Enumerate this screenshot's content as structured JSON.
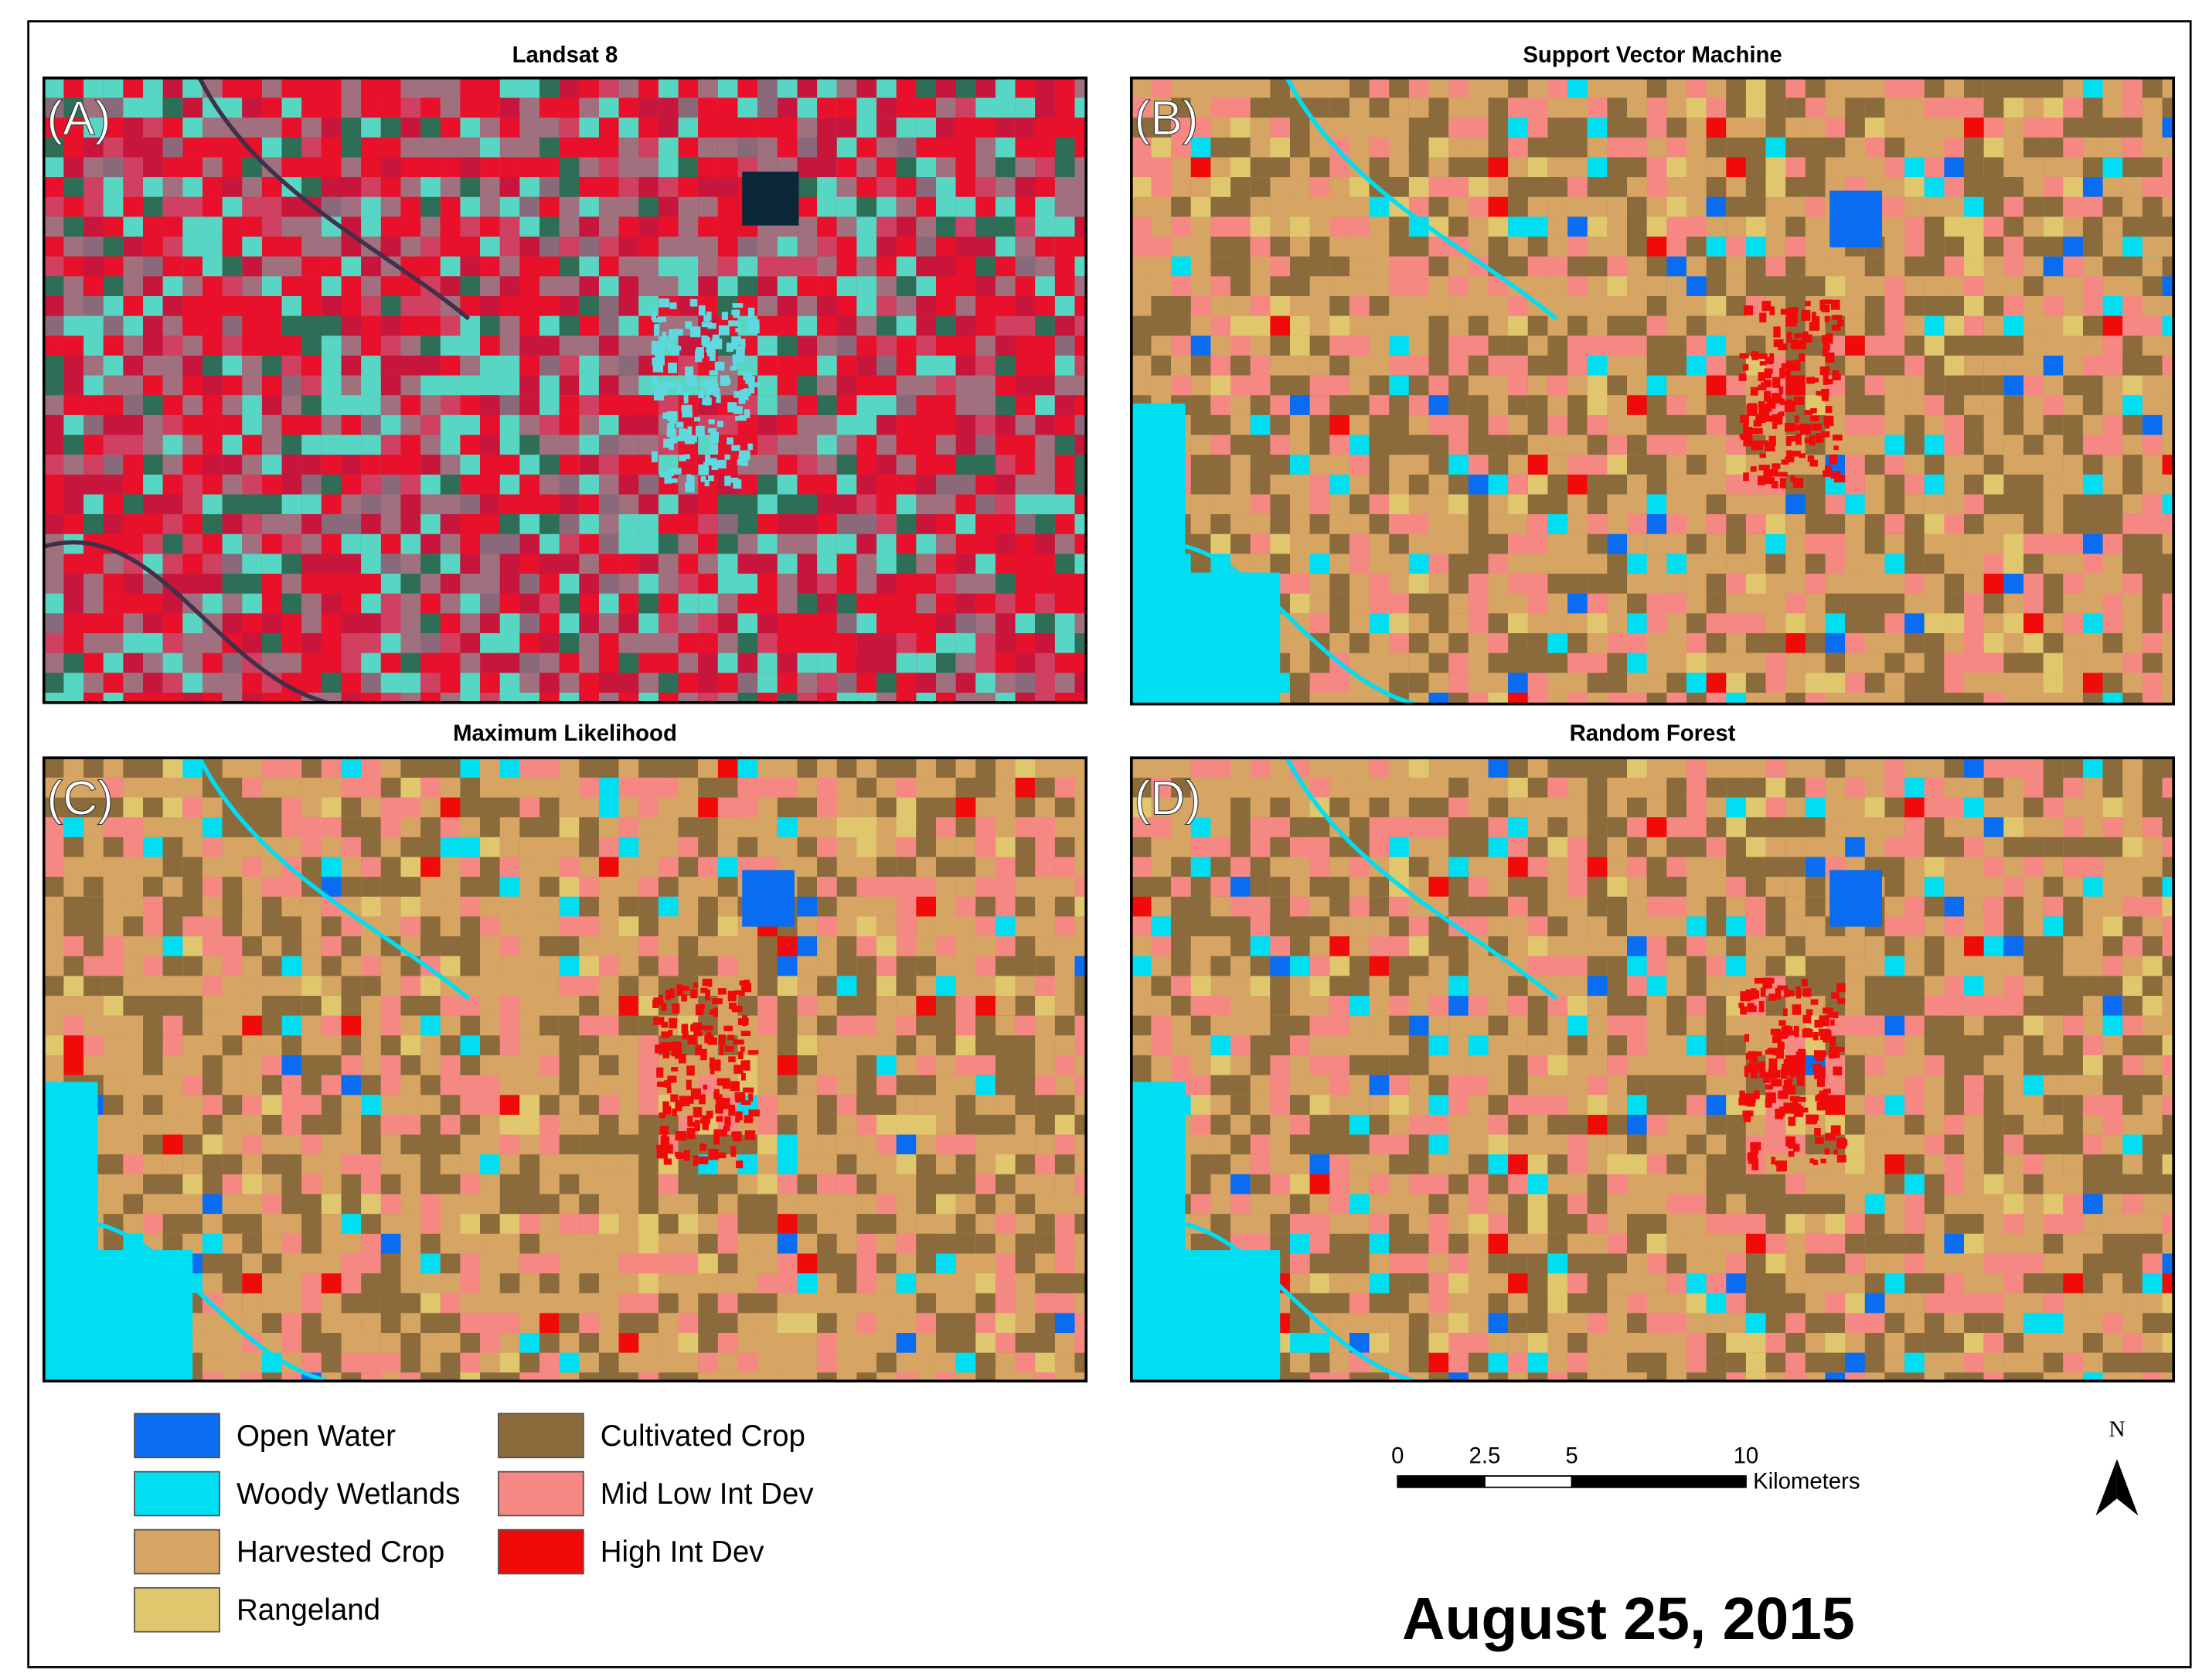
{
  "figure": {
    "panels": [
      {
        "title": "Landsat 8",
        "label": "(A)"
      },
      {
        "title": "Support Vector Machine",
        "label": "(B)"
      },
      {
        "title": "Maximum Likelihood",
        "label": "(C)"
      },
      {
        "title": "Random Forest",
        "label": "(D)"
      }
    ],
    "legend": [
      {
        "label": "Open Water",
        "color": "#0a6cf0"
      },
      {
        "label": "Woody Wetlands",
        "color": "#00def2"
      },
      {
        "label": "Harvested Crop",
        "color": "#d6a463"
      },
      {
        "label": "Rangeland",
        "color": "#e0c76e"
      },
      {
        "label": "Cultivated Crop",
        "color": "#8b6b3c"
      },
      {
        "label": "Mid Low Int Dev",
        "color": "#f58883"
      },
      {
        "label": "High Int Dev",
        "color": "#f00a0a"
      }
    ],
    "scale_bar": {
      "ticks": [
        0,
        2.5,
        5,
        10
      ],
      "unit": "Kilometers"
    },
    "north": "N",
    "date": "August 25, 2015"
  }
}
